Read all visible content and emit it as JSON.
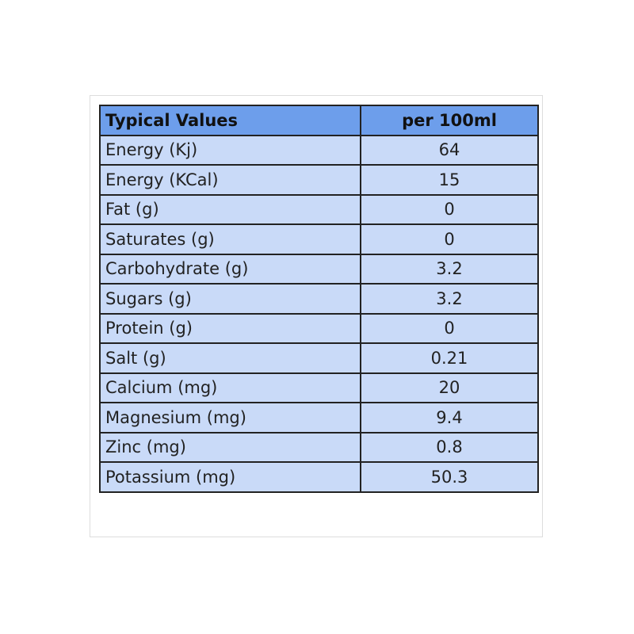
{
  "table": {
    "header": [
      "Typical Values",
      "per 100ml"
    ],
    "rows": [
      [
        "Energy (Kj)",
        "64"
      ],
      [
        "Energy (KCal)",
        "15"
      ],
      [
        "Fat (g)",
        "0"
      ],
      [
        "Saturates (g)",
        "0"
      ],
      [
        "Carbohydrate (g)",
        "3.2"
      ],
      [
        "Sugars (g)",
        "3.2"
      ],
      [
        "Protein (g)",
        "0"
      ],
      [
        "Salt (g)",
        "0.21"
      ],
      [
        "Calcium (mg)",
        "20"
      ],
      [
        "Magnesium (mg)",
        "9.4"
      ],
      [
        "Zinc (mg)",
        "0.8"
      ],
      [
        "Potassium (mg)",
        "50.3"
      ]
    ]
  }
}
